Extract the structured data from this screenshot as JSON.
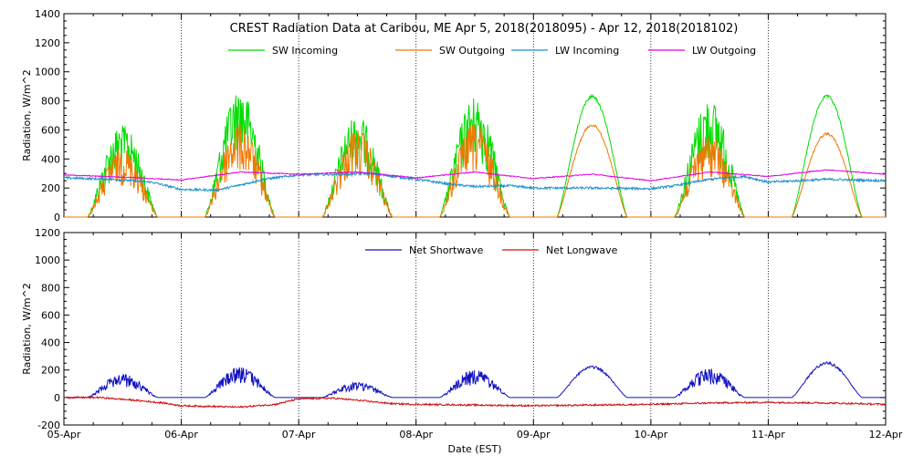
{
  "chart_data": [
    {
      "type": "line",
      "title": "CREST Radiation Data at Caribou, ME   Apr  5, 2018(2018095) - Apr 12, 2018(2018102)",
      "xlabel": "",
      "ylabel": "Radiation, W/m^2",
      "ylim": [
        0,
        1400
      ],
      "yticks": [
        0,
        200,
        400,
        600,
        800,
        1000,
        1200,
        1400
      ],
      "xlim_days": [
        0,
        7
      ],
      "grid": true,
      "legend_position": "top",
      "series": [
        {
          "name": "SW Incoming",
          "color": "#00dd00",
          "type": "solar",
          "peaks": [
            630,
            870,
            700,
            820,
            840,
            800,
            840
          ],
          "noise": [
            1,
            1,
            1,
            1,
            0.05,
            1,
            0.05
          ]
        },
        {
          "name": "SW Outgoing",
          "color": "#ee7a00",
          "type": "solar",
          "peaks": [
            470,
            640,
            600,
            640,
            640,
            570,
            580
          ],
          "noise": [
            1,
            1,
            1,
            1,
            0.05,
            1,
            0.05
          ]
        },
        {
          "name": "LW Incoming",
          "color": "#1f8fc9",
          "type": "pts",
          "noise_amp": 8,
          "x": [
            0,
            0.4,
            0.75,
            1.0,
            1.3,
            1.5,
            1.7,
            2.0,
            2.4,
            2.6,
            3.0,
            3.3,
            3.5,
            3.8,
            4.0,
            4.5,
            5.0,
            5.2,
            5.5,
            5.8,
            6.0,
            6.5,
            7.0
          ],
          "y": [
            270,
            260,
            240,
            190,
            185,
            220,
            260,
            290,
            295,
            300,
            260,
            225,
            210,
            215,
            200,
            200,
            195,
            215,
            260,
            280,
            240,
            260,
            250
          ]
        },
        {
          "name": "LW Outgoing",
          "color": "#e000e0",
          "type": "pts",
          "noise_amp": 3,
          "x": [
            0,
            0.5,
            1.0,
            1.5,
            2.0,
            2.5,
            3.0,
            3.5,
            4.0,
            4.5,
            5.0,
            5.5,
            6.0,
            6.5,
            7.0
          ],
          "y": [
            290,
            275,
            255,
            310,
            295,
            310,
            270,
            310,
            265,
            295,
            250,
            310,
            280,
            325,
            295
          ]
        }
      ]
    },
    {
      "type": "line",
      "title": "",
      "xlabel": "Date (EST)",
      "ylabel": "Radiation, W/m^2",
      "ylim": [
        -200,
        1200
      ],
      "yticks": [
        -200,
        0,
        200,
        400,
        600,
        800,
        1000,
        1200
      ],
      "xlim_days": [
        0,
        7
      ],
      "grid": true,
      "legend_position": "top",
      "series": [
        {
          "name": "Net Shortwave",
          "color": "#1010c0",
          "type": "solar",
          "peaks": [
            170,
            220,
            110,
            200,
            230,
            210,
            260
          ],
          "noise": [
            1,
            1,
            1,
            1,
            0.15,
            1,
            0.15
          ]
        },
        {
          "name": "Net Longwave",
          "color": "#cc1010",
          "type": "pts",
          "noise_amp": 6,
          "x": [
            0,
            0.3,
            0.6,
            0.85,
            1.0,
            1.5,
            1.8,
            2.0,
            2.3,
            2.5,
            2.8,
            3.0,
            3.5,
            4.0,
            4.5,
            5.0,
            5.5,
            6.0,
            6.5,
            7.0
          ],
          "y": [
            0,
            0,
            -20,
            -40,
            -60,
            -70,
            -50,
            -10,
            -5,
            -20,
            -45,
            -50,
            -55,
            -60,
            -55,
            -50,
            -40,
            -35,
            -40,
            -50
          ]
        }
      ]
    }
  ],
  "x_tick_labels": [
    "05-Apr",
    "06-Apr",
    "07-Apr",
    "08-Apr",
    "09-Apr",
    "10-Apr",
    "11-Apr",
    "12-Apr"
  ]
}
